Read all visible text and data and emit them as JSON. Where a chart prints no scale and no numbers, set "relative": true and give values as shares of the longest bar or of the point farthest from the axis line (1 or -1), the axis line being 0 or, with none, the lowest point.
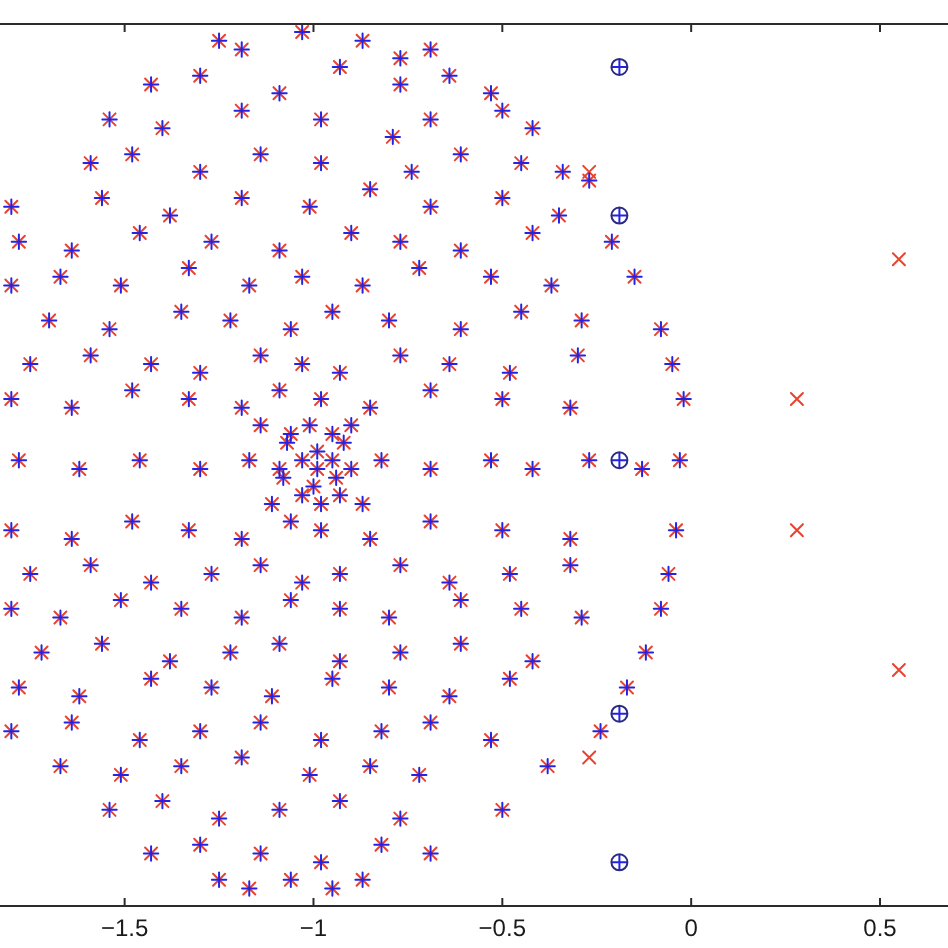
{
  "chart_data": {
    "type": "scatter",
    "relative": true,
    "tick_labels": "x",
    "xlim": [
      -1.83,
      0.68
    ],
    "xticks": [
      -1.5,
      -1,
      -0.5,
      0,
      0.5
    ],
    "series": [
      {
        "color": "#e8432e",
        "marker": "x",
        "x": [
          -1.03,
          -1.25,
          -1.19,
          -0.87,
          -0.77,
          -0.69,
          -1.43,
          -1.3,
          -1.09,
          -0.93,
          -0.77,
          -0.64,
          -0.53,
          -1.54,
          -1.4,
          -1.19,
          -0.98,
          -0.79,
          -0.69,
          -0.5,
          -0.42,
          -1.59,
          -1.48,
          -1.3,
          -1.14,
          -0.98,
          -0.74,
          -0.61,
          -0.45,
          -0.34,
          -1.8,
          -1.56,
          -1.38,
          -1.19,
          -1.01,
          -0.85,
          -0.69,
          -0.5,
          -0.35,
          -0.27,
          -1.78,
          -1.64,
          -1.46,
          -1.27,
          -1.09,
          -0.9,
          -0.77,
          -0.61,
          -0.42,
          -0.21,
          -1.8,
          -1.67,
          -1.51,
          -1.33,
          -1.17,
          -1.03,
          -0.87,
          -0.72,
          -0.53,
          -0.37,
          -0.15,
          -1.7,
          -1.54,
          -1.35,
          -1.22,
          -1.06,
          -0.95,
          -0.8,
          -0.61,
          -0.45,
          -0.29,
          -0.08,
          -1.75,
          -1.59,
          -1.43,
          -1.3,
          -1.14,
          -1.03,
          -0.93,
          -0.77,
          -0.64,
          -0.48,
          -0.3,
          -0.05,
          -1.8,
          -1.64,
          -1.48,
          -1.33,
          -1.19,
          -1.09,
          -0.98,
          -0.85,
          -0.69,
          -0.5,
          -0.32,
          -0.02,
          -1.14,
          -1.06,
          -1.01,
          -0.95,
          -0.9,
          -1.07,
          -0.99,
          -0.92,
          -1.78,
          -1.62,
          -1.46,
          -1.3,
          -1.17,
          -1.09,
          -1.03,
          -0.99,
          -0.95,
          -0.9,
          -0.82,
          -0.69,
          -0.53,
          -0.42,
          -0.27,
          -0.13,
          -0.03,
          -1.08,
          -1.0,
          -0.94,
          -1.11,
          -1.03,
          -0.98,
          -0.93,
          -0.87,
          -1.8,
          -1.64,
          -1.48,
          -1.33,
          -1.19,
          -1.06,
          -0.98,
          -0.85,
          -0.69,
          -0.5,
          -0.32,
          -0.04,
          -1.75,
          -1.59,
          -1.43,
          -1.27,
          -1.14,
          -1.03,
          -0.93,
          -0.77,
          -0.64,
          -0.48,
          -0.32,
          -0.06,
          -1.8,
          -1.67,
          -1.51,
          -1.35,
          -1.19,
          -1.06,
          -0.93,
          -0.8,
          -0.61,
          -0.45,
          -0.29,
          -0.08,
          -1.72,
          -1.56,
          -1.38,
          -1.22,
          -1.09,
          -0.93,
          -0.77,
          -0.61,
          -0.42,
          -0.12,
          -1.78,
          -1.62,
          -1.43,
          -1.27,
          -1.11,
          -0.95,
          -0.8,
          -0.64,
          -0.48,
          -0.17,
          -1.8,
          -1.64,
          -1.46,
          -1.3,
          -1.14,
          -0.98,
          -0.82,
          -0.69,
          -0.53,
          -0.24,
          -1.67,
          -1.51,
          -1.35,
          -1.19,
          -1.01,
          -0.85,
          -0.72,
          -0.38,
          -1.54,
          -1.4,
          -1.25,
          -1.09,
          -0.93,
          -0.77,
          -0.5,
          -1.43,
          -1.3,
          -1.14,
          -0.98,
          -0.82,
          -0.69,
          -1.25,
          -1.17,
          -1.06,
          -0.95,
          -0.87,
          -0.27,
          -0.27,
          0.28,
          0.28,
          0.55,
          0.55
        ],
        "values": [
          1.0,
          0.99,
          0.98,
          0.99,
          0.97,
          0.98,
          0.94,
          0.95,
          0.93,
          0.96,
          0.94,
          0.95,
          0.93,
          0.9,
          0.89,
          0.91,
          0.9,
          0.88,
          0.9,
          0.91,
          0.89,
          0.85,
          0.86,
          0.84,
          0.86,
          0.85,
          0.84,
          0.86,
          0.85,
          0.84,
          0.8,
          0.81,
          0.79,
          0.81,
          0.8,
          0.82,
          0.8,
          0.81,
          0.79,
          0.83,
          0.76,
          0.75,
          0.77,
          0.76,
          0.75,
          0.77,
          0.76,
          0.75,
          0.77,
          0.76,
          0.71,
          0.72,
          0.71,
          0.73,
          0.71,
          0.72,
          0.71,
          0.73,
          0.72,
          0.71,
          0.72,
          0.67,
          0.66,
          0.68,
          0.67,
          0.66,
          0.68,
          0.67,
          0.66,
          0.68,
          0.67,
          0.66,
          0.62,
          0.63,
          0.62,
          0.61,
          0.63,
          0.62,
          0.61,
          0.63,
          0.62,
          0.61,
          0.63,
          0.62,
          0.58,
          0.57,
          0.59,
          0.58,
          0.57,
          0.59,
          0.58,
          0.57,
          0.59,
          0.58,
          0.57,
          0.58,
          0.55,
          0.54,
          0.55,
          0.54,
          0.55,
          0.53,
          0.52,
          0.53,
          0.51,
          0.5,
          0.51,
          0.5,
          0.51,
          0.5,
          0.51,
          0.5,
          0.51,
          0.5,
          0.51,
          0.5,
          0.51,
          0.5,
          0.51,
          0.5,
          0.51,
          0.49,
          0.48,
          0.49,
          0.46,
          0.47,
          0.46,
          0.47,
          0.46,
          0.43,
          0.42,
          0.44,
          0.43,
          0.42,
          0.44,
          0.43,
          0.42,
          0.44,
          0.43,
          0.42,
          0.43,
          0.38,
          0.39,
          0.37,
          0.38,
          0.39,
          0.37,
          0.38,
          0.39,
          0.37,
          0.38,
          0.39,
          0.38,
          0.34,
          0.33,
          0.35,
          0.34,
          0.33,
          0.35,
          0.34,
          0.33,
          0.35,
          0.34,
          0.33,
          0.34,
          0.29,
          0.3,
          0.28,
          0.29,
          0.3,
          0.28,
          0.29,
          0.3,
          0.28,
          0.29,
          0.25,
          0.24,
          0.26,
          0.25,
          0.24,
          0.26,
          0.25,
          0.24,
          0.26,
          0.25,
          0.2,
          0.21,
          0.19,
          0.2,
          0.21,
          0.19,
          0.2,
          0.21,
          0.19,
          0.2,
          0.16,
          0.15,
          0.16,
          0.17,
          0.15,
          0.16,
          0.15,
          0.16,
          0.11,
          0.12,
          0.1,
          0.11,
          0.12,
          0.1,
          0.11,
          0.06,
          0.07,
          0.06,
          0.05,
          0.07,
          0.06,
          0.03,
          0.02,
          0.03,
          0.02,
          0.03,
          0.84,
          0.17,
          0.58,
          0.43,
          0.74,
          0.27
        ]
      },
      {
        "color": "#2323e8",
        "marker": "cross",
        "x": [
          -1.03,
          -1.25,
          -1.19,
          -0.87,
          -0.77,
          -0.69,
          -1.43,
          -1.3,
          -1.09,
          -0.93,
          -0.77,
          -0.64,
          -0.53,
          -1.54,
          -1.4,
          -1.19,
          -0.98,
          -0.79,
          -0.69,
          -0.5,
          -0.42,
          -1.59,
          -1.48,
          -1.3,
          -1.14,
          -0.98,
          -0.74,
          -0.61,
          -0.45,
          -0.34,
          -1.8,
          -1.56,
          -1.38,
          -1.19,
          -1.01,
          -0.85,
          -0.69,
          -0.5,
          -0.35,
          -0.27,
          -1.78,
          -1.64,
          -1.46,
          -1.27,
          -1.09,
          -0.9,
          -0.77,
          -0.61,
          -0.42,
          -0.21,
          -1.8,
          -1.67,
          -1.51,
          -1.33,
          -1.17,
          -1.03,
          -0.87,
          -0.72,
          -0.53,
          -0.37,
          -0.15,
          -1.7,
          -1.54,
          -1.35,
          -1.22,
          -1.06,
          -0.95,
          -0.8,
          -0.61,
          -0.45,
          -0.29,
          -0.08,
          -1.75,
          -1.59,
          -1.43,
          -1.3,
          -1.14,
          -1.03,
          -0.93,
          -0.77,
          -0.64,
          -0.48,
          -0.3,
          -0.05,
          -1.8,
          -1.64,
          -1.48,
          -1.33,
          -1.19,
          -1.09,
          -0.98,
          -0.85,
          -0.69,
          -0.5,
          -0.32,
          -0.02,
          -1.14,
          -1.06,
          -1.01,
          -0.95,
          -0.9,
          -1.07,
          -0.99,
          -0.92,
          -1.78,
          -1.62,
          -1.46,
          -1.3,
          -1.17,
          -1.09,
          -1.03,
          -0.99,
          -0.95,
          -0.9,
          -0.82,
          -0.69,
          -0.53,
          -0.42,
          -0.27,
          -0.13,
          -0.03,
          -1.08,
          -1.0,
          -0.94,
          -1.11,
          -1.03,
          -0.98,
          -0.93,
          -0.87,
          -1.8,
          -1.64,
          -1.48,
          -1.33,
          -1.19,
          -1.06,
          -0.98,
          -0.85,
          -0.69,
          -0.5,
          -0.32,
          -0.04,
          -1.75,
          -1.59,
          -1.43,
          -1.27,
          -1.14,
          -1.03,
          -0.93,
          -0.77,
          -0.64,
          -0.48,
          -0.32,
          -0.06,
          -1.8,
          -1.67,
          -1.51,
          -1.35,
          -1.19,
          -1.06,
          -0.93,
          -0.8,
          -0.61,
          -0.45,
          -0.29,
          -0.08,
          -1.72,
          -1.56,
          -1.38,
          -1.22,
          -1.09,
          -0.93,
          -0.77,
          -0.61,
          -0.42,
          -0.12,
          -1.78,
          -1.62,
          -1.43,
          -1.27,
          -1.11,
          -0.95,
          -0.8,
          -0.64,
          -0.48,
          -0.17,
          -1.8,
          -1.64,
          -1.46,
          -1.3,
          -1.14,
          -0.98,
          -0.82,
          -0.69,
          -0.53,
          -0.24,
          -1.67,
          -1.51,
          -1.35,
          -1.19,
          -1.01,
          -0.85,
          -0.72,
          -0.38,
          -1.54,
          -1.4,
          -1.25,
          -1.09,
          -0.93,
          -0.77,
          -0.5,
          -1.43,
          -1.3,
          -1.14,
          -0.98,
          -0.82,
          -0.69,
          -1.25,
          -1.17,
          -1.06,
          -0.95,
          -0.87,
          -0.19,
          -0.19,
          -0.19,
          -0.19,
          -0.19
        ],
        "values": [
          1.0,
          0.99,
          0.98,
          0.99,
          0.97,
          0.98,
          0.94,
          0.95,
          0.93,
          0.96,
          0.94,
          0.95,
          0.93,
          0.9,
          0.89,
          0.91,
          0.9,
          0.88,
          0.9,
          0.91,
          0.89,
          0.85,
          0.86,
          0.84,
          0.86,
          0.85,
          0.84,
          0.86,
          0.85,
          0.84,
          0.8,
          0.81,
          0.79,
          0.81,
          0.8,
          0.82,
          0.8,
          0.81,
          0.79,
          0.83,
          0.76,
          0.75,
          0.77,
          0.76,
          0.75,
          0.77,
          0.76,
          0.75,
          0.77,
          0.76,
          0.71,
          0.72,
          0.71,
          0.73,
          0.71,
          0.72,
          0.71,
          0.73,
          0.72,
          0.71,
          0.72,
          0.67,
          0.66,
          0.68,
          0.67,
          0.66,
          0.68,
          0.67,
          0.66,
          0.68,
          0.67,
          0.66,
          0.62,
          0.63,
          0.62,
          0.61,
          0.63,
          0.62,
          0.61,
          0.63,
          0.62,
          0.61,
          0.63,
          0.62,
          0.58,
          0.57,
          0.59,
          0.58,
          0.57,
          0.59,
          0.58,
          0.57,
          0.59,
          0.58,
          0.57,
          0.58,
          0.55,
          0.54,
          0.55,
          0.54,
          0.55,
          0.53,
          0.52,
          0.53,
          0.51,
          0.5,
          0.51,
          0.5,
          0.51,
          0.5,
          0.51,
          0.5,
          0.51,
          0.5,
          0.51,
          0.5,
          0.51,
          0.5,
          0.51,
          0.5,
          0.51,
          0.49,
          0.48,
          0.49,
          0.46,
          0.47,
          0.46,
          0.47,
          0.46,
          0.43,
          0.42,
          0.44,
          0.43,
          0.42,
          0.44,
          0.43,
          0.42,
          0.44,
          0.43,
          0.42,
          0.43,
          0.38,
          0.39,
          0.37,
          0.38,
          0.39,
          0.37,
          0.38,
          0.39,
          0.37,
          0.38,
          0.39,
          0.38,
          0.34,
          0.33,
          0.35,
          0.34,
          0.33,
          0.35,
          0.34,
          0.33,
          0.35,
          0.34,
          0.33,
          0.34,
          0.29,
          0.3,
          0.28,
          0.29,
          0.3,
          0.28,
          0.29,
          0.3,
          0.28,
          0.29,
          0.25,
          0.24,
          0.26,
          0.25,
          0.24,
          0.26,
          0.25,
          0.24,
          0.26,
          0.25,
          0.2,
          0.21,
          0.19,
          0.2,
          0.21,
          0.19,
          0.2,
          0.21,
          0.19,
          0.2,
          0.16,
          0.15,
          0.16,
          0.17,
          0.15,
          0.16,
          0.15,
          0.16,
          0.11,
          0.12,
          0.1,
          0.11,
          0.12,
          0.1,
          0.11,
          0.06,
          0.07,
          0.06,
          0.05,
          0.07,
          0.06,
          0.03,
          0.02,
          0.03,
          0.02,
          0.03,
          0.96,
          0.79,
          0.51,
          0.22,
          0.05
        ]
      },
      {
        "color": "#2a2a80",
        "marker": "circle",
        "x": [
          -0.19,
          -0.19,
          -0.19,
          -0.19,
          -0.19
        ],
        "values": [
          0.96,
          0.79,
          0.51,
          0.22,
          0.05
        ]
      }
    ]
  }
}
